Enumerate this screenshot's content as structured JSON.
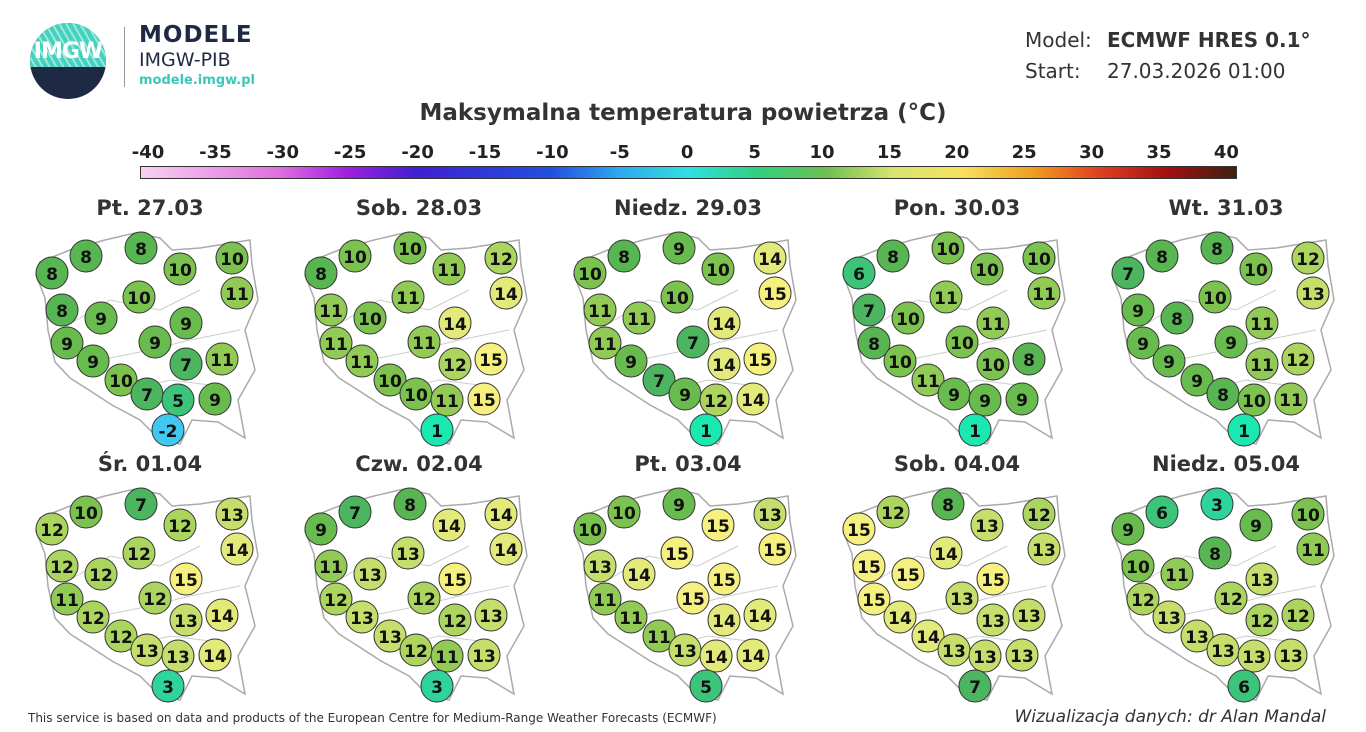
{
  "header": {
    "brand_title": "MODELE",
    "brand_subtitle": "IMGW-PIB",
    "brand_url": "modele.imgw.pl",
    "logo_text": "IMGW",
    "model_label": "Model:",
    "model_value": "ECMWF HRES 0.1°",
    "start_label": "Start:",
    "start_value": "27.03.2026 01:00"
  },
  "title": "Maksymalna temperatura powietrza (°C)",
  "colorbar": {
    "ticks": [
      "-40",
      "-35",
      "-30",
      "-25",
      "-20",
      "-15",
      "-10",
      "-5",
      "0",
      "5",
      "10",
      "15",
      "20",
      "25",
      "30",
      "35",
      "40"
    ],
    "range": [
      -40,
      40
    ]
  },
  "maps": [
    {
      "day": "Pt. 27.03",
      "values": [
        8,
        8,
        8,
        10,
        10,
        11,
        8,
        9,
        10,
        9,
        9,
        9,
        7,
        11,
        9,
        10,
        7,
        5,
        9,
        -2
      ]
    },
    {
      "day": "Sob. 28.03",
      "values": [
        8,
        10,
        10,
        11,
        12,
        14,
        11,
        10,
        11,
        14,
        11,
        11,
        12,
        15,
        11,
        10,
        10,
        11,
        15,
        1
      ]
    },
    {
      "day": "Niedz. 29.03",
      "values": [
        10,
        8,
        9,
        10,
        14,
        15,
        11,
        11,
        10,
        14,
        11,
        7,
        14,
        15,
        9,
        7,
        9,
        12,
        14,
        1
      ]
    },
    {
      "day": "Pon. 30.03",
      "values": [
        6,
        8,
        10,
        10,
        10,
        11,
        7,
        10,
        11,
        11,
        8,
        10,
        10,
        8,
        10,
        11,
        9,
        9,
        9,
        1
      ]
    },
    {
      "day": "Wt. 31.03",
      "values": [
        7,
        8,
        8,
        10,
        12,
        13,
        9,
        8,
        10,
        11,
        9,
        9,
        11,
        12,
        9,
        9,
        8,
        10,
        11,
        1
      ]
    },
    {
      "day": "Śr. 01.04",
      "values": [
        12,
        10,
        7,
        12,
        13,
        14,
        12,
        12,
        12,
        15,
        11,
        12,
        13,
        14,
        12,
        12,
        13,
        13,
        14,
        3
      ]
    },
    {
      "day": "Czw. 02.04",
      "values": [
        9,
        7,
        8,
        14,
        14,
        14,
        11,
        13,
        13,
        15,
        12,
        12,
        12,
        13,
        13,
        13,
        12,
        11,
        13,
        3
      ]
    },
    {
      "day": "Pt. 03.04",
      "values": [
        10,
        10,
        9,
        15,
        13,
        15,
        13,
        14,
        15,
        15,
        11,
        15,
        14,
        14,
        11,
        11,
        13,
        14,
        14,
        5
      ]
    },
    {
      "day": "Sob. 04.04",
      "values": [
        15,
        12,
        8,
        13,
        12,
        13,
        15,
        15,
        14,
        15,
        15,
        13,
        13,
        13,
        14,
        14,
        13,
        13,
        13,
        7
      ]
    },
    {
      "day": "Niedz. 05.04",
      "values": [
        9,
        6,
        3,
        9,
        10,
        11,
        10,
        11,
        8,
        13,
        12,
        12,
        12,
        12,
        13,
        13,
        13,
        13,
        13,
        6
      ]
    }
  ],
  "footer": "This service is based on data and products of the European Centre for Medium-Range Weather Forecasts (ECMWF)",
  "credit": "Wizualizacja danych: dr Alan Mandal"
}
